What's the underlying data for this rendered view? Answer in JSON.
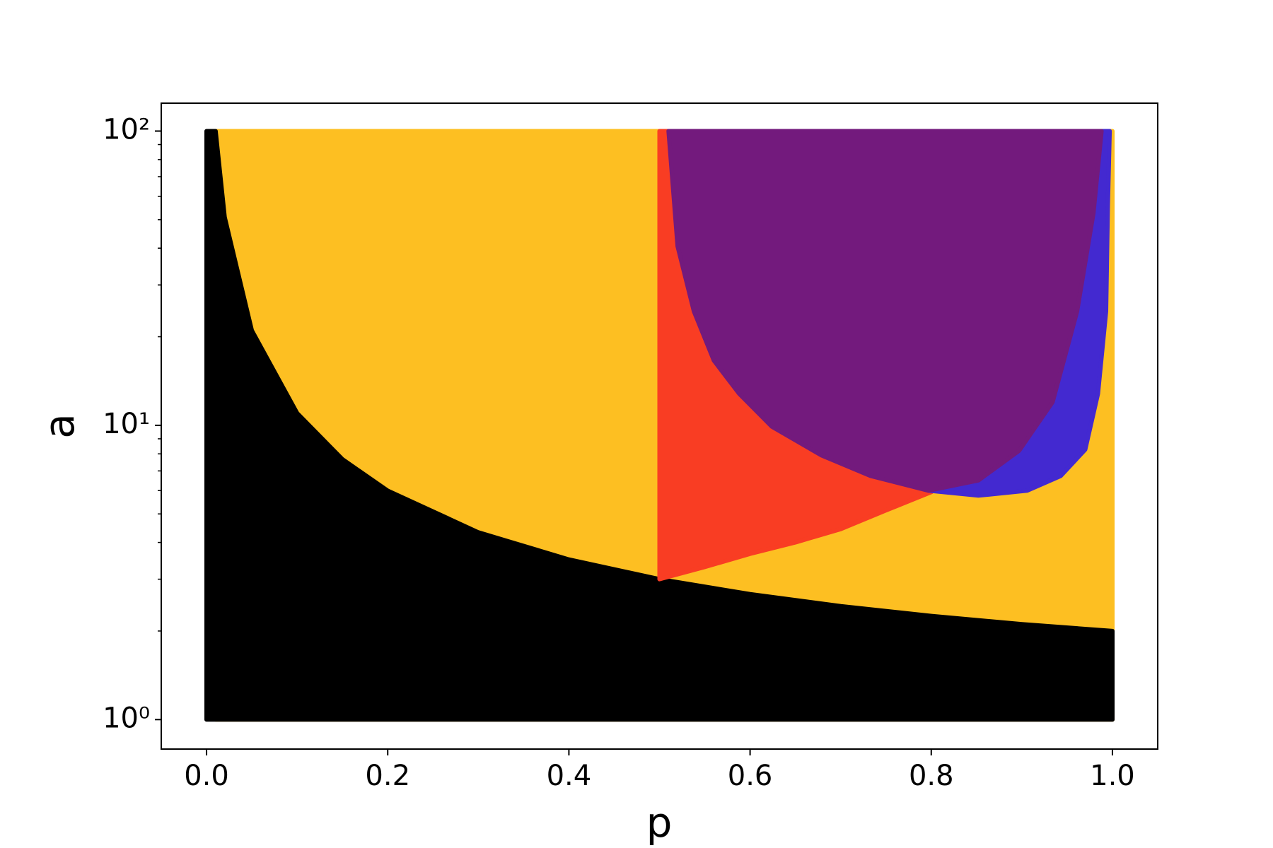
{
  "chart_data": {
    "type": "area",
    "x_label": "p",
    "y_label": "a",
    "xlim": [
      -0.05,
      1.05
    ],
    "ylim": [
      0.794,
      124.4
    ],
    "log_y": true,
    "xticks": [
      {
        "value": 0,
        "label": "0.0"
      },
      {
        "value": 0.2,
        "label": "0.2"
      },
      {
        "value": 0.4,
        "label": "0.4"
      },
      {
        "value": 0.6,
        "label": "0.6"
      },
      {
        "value": 0.8,
        "label": "0.8"
      },
      {
        "value": 1,
        "label": "1.0"
      }
    ],
    "yticks": [
      {
        "value": 1,
        "label": "10⁰"
      },
      {
        "value": 10,
        "label": "10¹"
      },
      {
        "value": 100,
        "label": "10²"
      }
    ],
    "yminorticks": [
      2,
      3,
      4,
      5,
      6,
      7,
      8,
      9,
      20,
      30,
      40,
      50,
      60,
      70,
      80,
      90
    ],
    "series": [
      {
        "color": "#fdbf22",
        "x": [
          0.01,
          1
        ],
        "low": [
          1,
          1
        ],
        "high": [
          100,
          100
        ]
      },
      {
        "color": "#000000",
        "x": [
          0,
          0.01,
          0.02,
          0.05,
          0.1,
          0.15,
          0.2,
          0.3,
          0.4,
          0.5,
          0.6,
          0.7,
          0.8,
          0.9,
          1
        ],
        "low": [
          1,
          1,
          1,
          1,
          1,
          1,
          1,
          1,
          1,
          1,
          1,
          1,
          1,
          1,
          1
        ],
        "high": [
          100,
          100,
          51,
          21,
          11,
          7.67,
          6,
          4.33,
          3.5,
          3,
          2.67,
          2.43,
          2.25,
          2.11,
          2
        ]
      },
      {
        "color": "#f93d23",
        "x": [
          0.5,
          0.55,
          0.6,
          0.65,
          0.7,
          0.75,
          0.8
        ],
        "low": [
          3,
          3.3,
          3.66,
          4.0,
          4.44,
          5.14,
          5.93
        ],
        "high": [
          100,
          100,
          100,
          100,
          100,
          100,
          100
        ]
      },
      {
        "color": "#4329d0",
        "x": [
          0.797,
          0.852,
          0.906,
          0.943,
          0.97,
          0.984,
          0.993,
          0.995,
          0.997
        ],
        "low": [
          6.0,
          5.77,
          6.0,
          6.73,
          8.27,
          12.8,
          24.4,
          56,
          100
        ],
        "high": [
          100,
          100,
          100,
          100,
          100,
          100,
          100,
          100,
          100
        ]
      },
      {
        "color": "#731a7d",
        "x": [
          0.51,
          0.52,
          0.538,
          0.56,
          0.588,
          0.624,
          0.679,
          0.733,
          0.797,
          0.852,
          0.897,
          0.934,
          0.961,
          0.979,
          0.988
        ],
        "low": [
          100,
          40.6,
          24.4,
          16.6,
          12.8,
          9.9,
          7.9,
          6.73,
          6.0,
          6.5,
          8.2,
          12.0,
          24.4,
          52.6,
          100
        ],
        "high": [
          100,
          100,
          100,
          100,
          100,
          100,
          100,
          100,
          100,
          100,
          100,
          100,
          100,
          100,
          100
        ]
      }
    ]
  }
}
